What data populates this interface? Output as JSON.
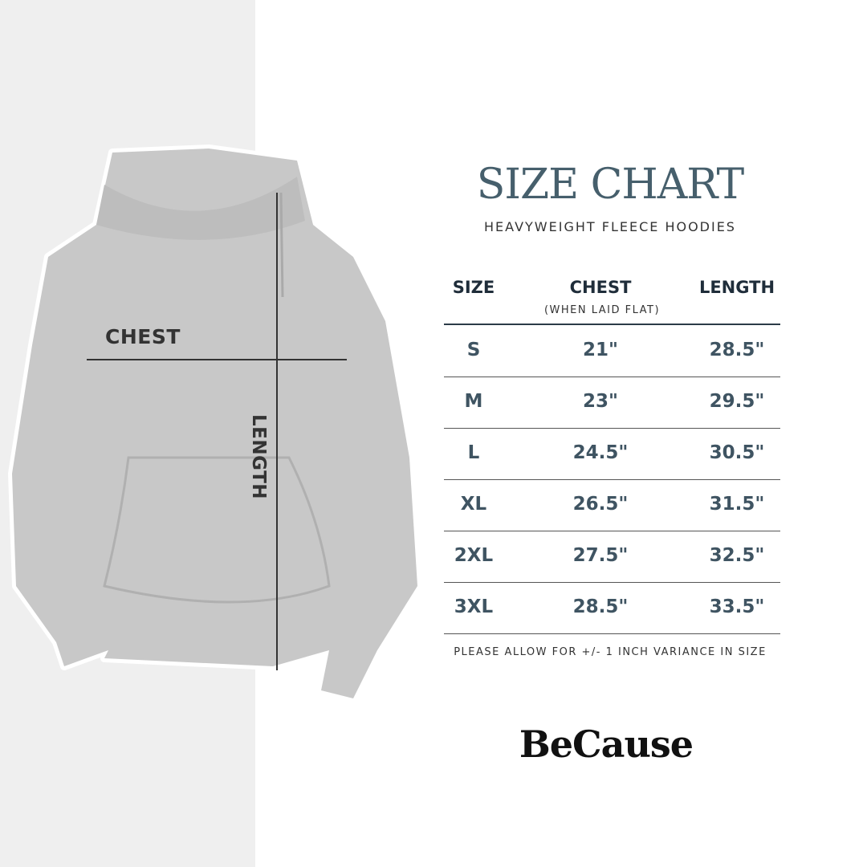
{
  "title": "SIZE CHART",
  "subtitle": "HEAVYWEIGHT FLEECE HOODIES",
  "diagram": {
    "chest_label": "CHEST",
    "length_label": "LENGTH"
  },
  "table": {
    "headers": [
      "SIZE",
      "CHEST",
      "LENGTH"
    ],
    "chest_subheader": "(WHEN LAID FLAT)",
    "rows": [
      [
        "S",
        "21\"",
        "28.5\""
      ],
      [
        "M",
        "23\"",
        "29.5\""
      ],
      [
        "L",
        "24.5\"",
        "30.5\""
      ],
      [
        "XL",
        "26.5\"",
        "31.5\""
      ],
      [
        "2XL",
        "27.5\"",
        "32.5\""
      ],
      [
        "3XL",
        "28.5\"",
        "33.5\""
      ]
    ]
  },
  "note": "PLEASE ALLOW FOR +/- 1 INCH VARIANCE IN SIZE",
  "brand": "BeCause",
  "colors": {
    "title": "#465f6c",
    "cells": "#3f5462",
    "left_panel": "#efefef",
    "hoodie": "#c9c9c9"
  }
}
